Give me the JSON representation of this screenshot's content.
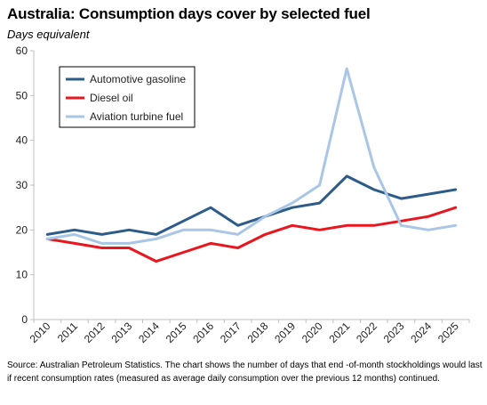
{
  "title": "Australia: Consumption days cover by selected fuel",
  "subtitle": "Days equivalent",
  "source": "Source: Australian Petroleum Statistics. The chart shows the number of days that end -of-month stockholdings would last if recent consumption rates (measured as average daily consumption over the previous 12 months) continued.",
  "chart_data": {
    "type": "line",
    "categories": [
      "2010",
      "2011",
      "2012",
      "2013",
      "2014",
      "2015",
      "2016",
      "2017",
      "2018",
      "2019",
      "2020",
      "2021",
      "2022",
      "2023",
      "2024",
      "2025"
    ],
    "ylim": [
      0,
      60
    ],
    "yticks": [
      0,
      10,
      20,
      30,
      40,
      50,
      60
    ],
    "grid": false,
    "legend_position": "top-left",
    "series": [
      {
        "name": "Automotive gasoline",
        "color": "#2e5c8a",
        "values": [
          19,
          20,
          19,
          20,
          19,
          22,
          25,
          21,
          23,
          25,
          26,
          32,
          29,
          27,
          28,
          29
        ]
      },
      {
        "name": "Diesel oil",
        "color": "#e8171f",
        "values": [
          18,
          17,
          16,
          16,
          13,
          15,
          17,
          16,
          19,
          21,
          20,
          21,
          21,
          22,
          23,
          25
        ]
      },
      {
        "name": "Aviation turbine fuel",
        "color": "#a9c6e6",
        "values": [
          18,
          19,
          17,
          17,
          18,
          20,
          20,
          19,
          23,
          26,
          30,
          56,
          34,
          21,
          20,
          21
        ]
      }
    ]
  }
}
